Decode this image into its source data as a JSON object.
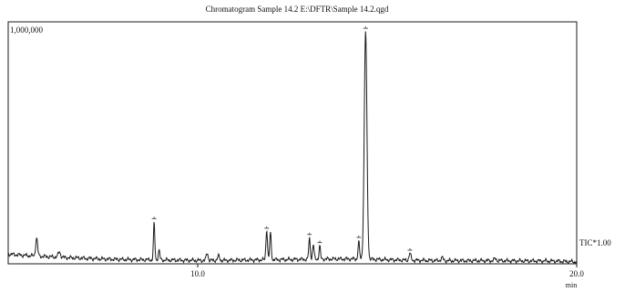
{
  "chart_data": {
    "type": "line",
    "title": "Chromatogram Sample 14.2 E:\\DFTR\\Sample 14.2.qgd",
    "y_max_label": "1,000,000",
    "x_unit": "min",
    "series_label": "TIC*1.00",
    "xlim": [
      5.0,
      20.0
    ],
    "ylim": [
      0,
      1000000
    ],
    "x_ticks": [
      {
        "value": 10.0,
        "label": "10.0"
      },
      {
        "value": 20.0,
        "label": "20.0"
      }
    ],
    "baseline": [
      [
        5.0,
        40000
      ],
      [
        5.5,
        34000
      ],
      [
        6.0,
        30000
      ],
      [
        6.5,
        26000
      ],
      [
        7.0,
        23000
      ],
      [
        7.5,
        20000
      ],
      [
        8.0,
        18000
      ],
      [
        8.5,
        17000
      ],
      [
        9.0,
        16000
      ],
      [
        9.5,
        15000
      ],
      [
        10.0,
        14000
      ],
      [
        10.5,
        14000
      ],
      [
        11.0,
        15000
      ],
      [
        11.5,
        16000
      ],
      [
        12.0,
        17000
      ],
      [
        12.5,
        18000
      ],
      [
        13.0,
        19000
      ],
      [
        13.5,
        20000
      ],
      [
        14.0,
        20000
      ],
      [
        14.5,
        19000
      ],
      [
        15.0,
        17000
      ],
      [
        15.5,
        15000
      ],
      [
        16.0,
        14000
      ],
      [
        16.5,
        13000
      ],
      [
        17.0,
        13000
      ],
      [
        17.5,
        13000
      ],
      [
        18.0,
        13000
      ],
      [
        18.5,
        12000
      ],
      [
        19.0,
        12000
      ],
      [
        19.5,
        11000
      ],
      [
        20.0,
        8000
      ]
    ],
    "peaks": [
      {
        "x": 5.75,
        "height": 75000,
        "width": 0.025,
        "marker": false
      },
      {
        "x": 6.35,
        "height": 22000,
        "width": 0.03,
        "marker": false
      },
      {
        "x": 8.85,
        "height": 150000,
        "width": 0.018,
        "marker": true
      },
      {
        "x": 8.98,
        "height": 40000,
        "width": 0.02,
        "marker": false
      },
      {
        "x": 10.25,
        "height": 30000,
        "width": 0.025,
        "marker": false
      },
      {
        "x": 10.55,
        "height": 18000,
        "width": 0.025,
        "marker": false
      },
      {
        "x": 11.82,
        "height": 125000,
        "width": 0.02,
        "marker": true
      },
      {
        "x": 11.92,
        "height": 110000,
        "width": 0.02,
        "marker": false
      },
      {
        "x": 12.95,
        "height": 85000,
        "width": 0.02,
        "marker": true
      },
      {
        "x": 13.05,
        "height": 60000,
        "width": 0.02,
        "marker": false
      },
      {
        "x": 13.22,
        "height": 55000,
        "width": 0.018,
        "marker": true
      },
      {
        "x": 14.25,
        "height": 70000,
        "width": 0.02,
        "marker": true
      },
      {
        "x": 14.43,
        "height": 940000,
        "width": 0.035,
        "marker": true
      },
      {
        "x": 15.6,
        "height": 28000,
        "width": 0.025,
        "marker": true
      },
      {
        "x": 16.45,
        "height": 12000,
        "width": 0.03,
        "marker": false
      },
      {
        "x": 17.85,
        "height": 8000,
        "width": 0.03,
        "marker": false
      }
    ],
    "grid": false,
    "legend": "none"
  },
  "colors": {
    "trace": "#1a1a1a",
    "axis": "#1a1a1a",
    "background": "#ffffff",
    "marker": "#555555"
  }
}
